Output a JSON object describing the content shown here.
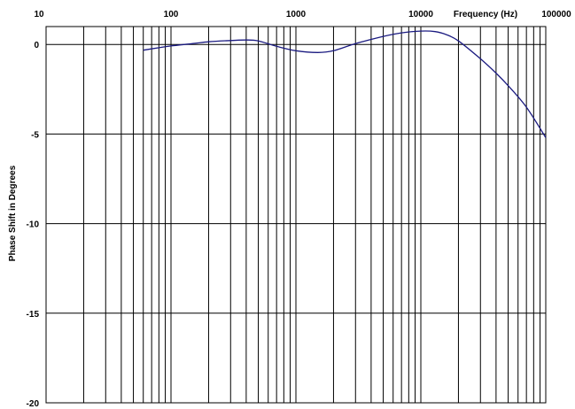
{
  "chart_data": {
    "type": "line",
    "title": "",
    "xlabel": "Frequency (Hz)",
    "ylabel": "Phase Shift in Degrees",
    "xscale": "log",
    "xlim": [
      10,
      100000
    ],
    "ylim": [
      -20,
      1
    ],
    "x_tick_labels": [
      "10",
      "100",
      "1000",
      "10000",
      "100000"
    ],
    "x_tick_values": [
      10,
      100,
      1000,
      10000,
      100000
    ],
    "y_tick_labels": [
      "0",
      "-5",
      "-10",
      "-15",
      "-20"
    ],
    "y_tick_values": [
      0,
      -5,
      -10,
      -15,
      -20
    ],
    "grid": true,
    "series": [
      {
        "color": "#1a1a80",
        "x": [
          60,
          80,
          100,
          150,
          200,
          300,
          400,
          500,
          700,
          1000,
          1500,
          2000,
          3000,
          5000,
          7000,
          10000,
          13000,
          16000,
          20000,
          30000,
          40000,
          50000,
          70000,
          100000
        ],
        "y": [
          -0.32,
          -0.18,
          -0.08,
          0.05,
          0.15,
          0.22,
          0.25,
          0.2,
          -0.1,
          -0.35,
          -0.45,
          -0.35,
          0.05,
          0.45,
          0.65,
          0.75,
          0.72,
          0.55,
          0.2,
          -0.8,
          -1.6,
          -2.3,
          -3.5,
          -5.2
        ]
      }
    ]
  }
}
